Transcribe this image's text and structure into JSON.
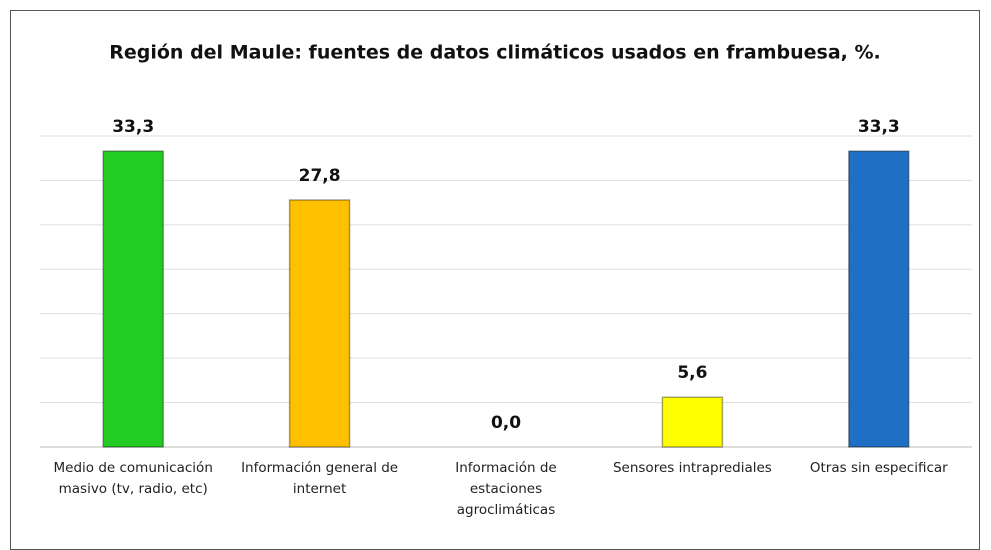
{
  "chart_data": {
    "type": "bar",
    "title": "Región del Maule: fuentes de datos climáticos usados en frambuesa,  %.",
    "categories": [
      "Medio de comunicación masivo (tv, radio, etc)",
      "Información general de internet",
      "Información de estaciones agroclimáticas",
      "Sensores intraprediales",
      "Otras sin especificar"
    ],
    "values": [
      33.3,
      27.8,
      0.0,
      5.6,
      33.3
    ],
    "value_labels": [
      "33,3",
      "27,8",
      "0,0",
      "5,6",
      "33,3"
    ],
    "colors": [
      "#22cc22",
      "#ffc000",
      "#a5a5a5",
      "#ffff00",
      "#1f6fc4"
    ],
    "ylim": [
      0,
      35
    ],
    "yticks": [
      0,
      5,
      10,
      15,
      20,
      25,
      30,
      35
    ],
    "grid": true
  }
}
